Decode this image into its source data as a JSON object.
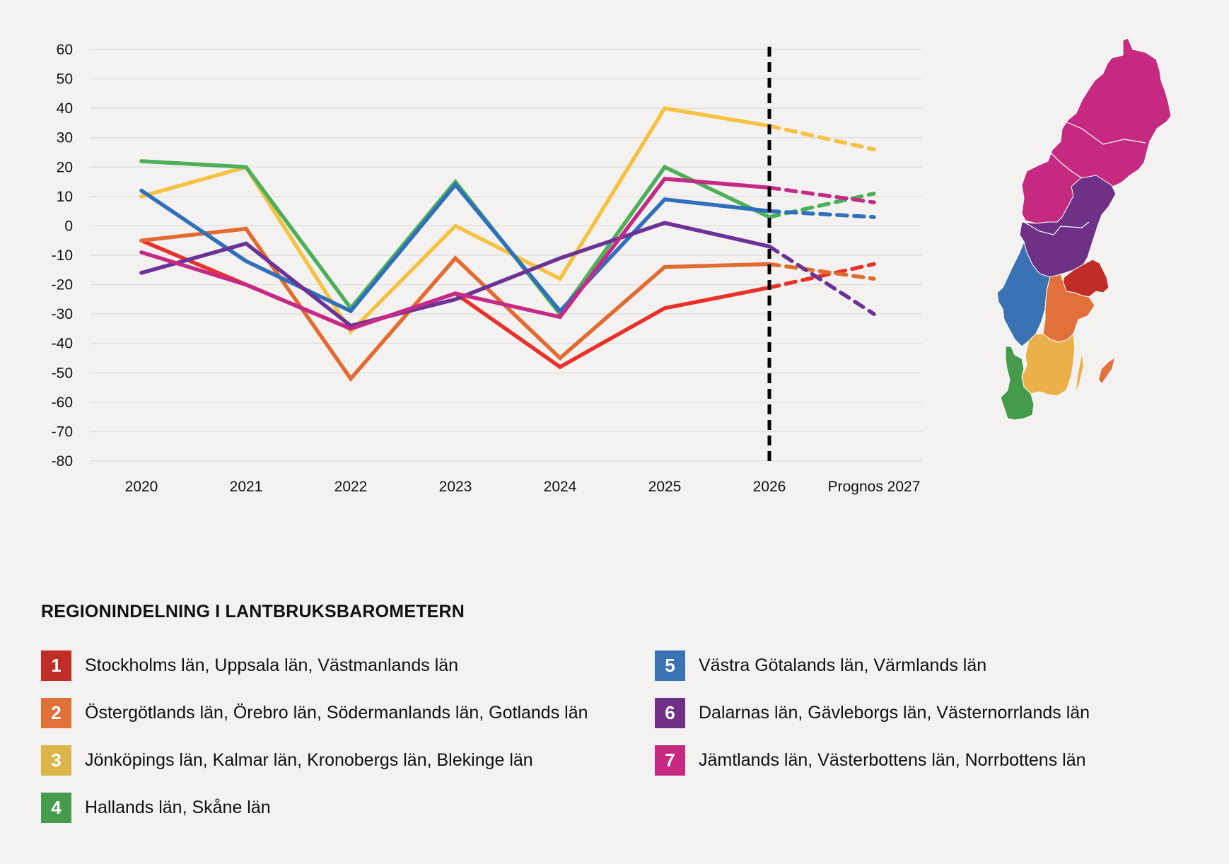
{
  "chart_data": {
    "type": "line",
    "title": "",
    "xlabel": "",
    "ylabel": "",
    "categories": [
      "2020",
      "2021",
      "2022",
      "2023",
      "2024",
      "2025",
      "2026",
      "Prognos 2027"
    ],
    "ylim": [
      -80,
      60
    ],
    "yticks": [
      60,
      50,
      40,
      30,
      20,
      10,
      0,
      -10,
      -20,
      -30,
      -40,
      -50,
      -60,
      -70,
      -80
    ],
    "grid": true,
    "forecast_divider_after": "2026",
    "forecast_style": "dashed",
    "series": [
      {
        "id": 1,
        "name": "Region 1",
        "color": "#e8312a",
        "values": [
          -5,
          -20,
          -35,
          -23,
          -48,
          -28,
          -21,
          -13
        ]
      },
      {
        "id": 2,
        "name": "Region 2",
        "color": "#e26b32",
        "values": [
          -5,
          -1,
          -52,
          -11,
          -45,
          -14,
          -13,
          -18
        ]
      },
      {
        "id": 3,
        "name": "Region 3",
        "color": "#f5c244",
        "values": [
          10,
          20,
          -36,
          0,
          -18,
          40,
          34,
          26
        ]
      },
      {
        "id": 4,
        "name": "Region 4",
        "color": "#4caf5a",
        "values": [
          22,
          20,
          -28,
          15,
          -30,
          20,
          3,
          11
        ]
      },
      {
        "id": 5,
        "name": "Region 5",
        "color": "#2f6fbb",
        "values": [
          12,
          -12,
          -29,
          14,
          -29,
          9,
          5,
          3
        ]
      },
      {
        "id": 6,
        "name": "Region 6",
        "color": "#6b3396",
        "values": [
          -16,
          -6,
          -34,
          -25,
          -11,
          1,
          -7,
          -30
        ]
      },
      {
        "id": 7,
        "name": "Region 7",
        "color": "#c52a87",
        "values": [
          -9,
          -20,
          -35,
          -23,
          -31,
          16,
          13,
          8
        ]
      }
    ]
  },
  "legend": {
    "title": "REGIONINDELNING I LANTBRUKSBAROMETERN",
    "items": [
      {
        "number": "1",
        "label": "Stockholms län, Uppsala län, Västmanlands län",
        "color": "#bf2d26"
      },
      {
        "number": "2",
        "label": "Östergötlands län, Örebro län, Södermanlands län, Gotlands län",
        "color": "#e0713b"
      },
      {
        "number": "3",
        "label": "Jönköpings län, Kalmar län, Kronobergs län, Blekinge län",
        "color": "#dcb54a"
      },
      {
        "number": "4",
        "label": "Hallands län, Skåne län",
        "color": "#459b4c"
      },
      {
        "number": "5",
        "label": "Västra Götalands län, Värmlands län",
        "color": "#3a72b4"
      },
      {
        "number": "6",
        "label": "Dalarnas län, Gävleborgs län, Västernorrlands län",
        "color": "#6e3185"
      },
      {
        "number": "7",
        "label": "Jämtlands län, Västerbottens län, Norrbottens län",
        "color": "#c62a80"
      }
    ]
  },
  "map": {
    "label": "Sweden region map",
    "region_colors": {
      "1": "#bf2d26",
      "2": "#e0713b",
      "3": "#ebb04a",
      "4": "#459b4c",
      "5": "#3a72b4",
      "6": "#6e3185",
      "7": "#c62a80"
    }
  }
}
